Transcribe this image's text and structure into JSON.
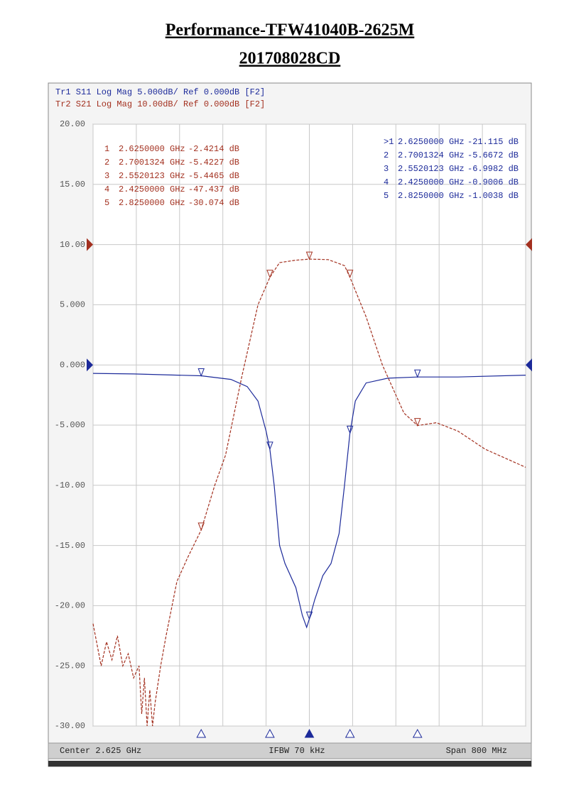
{
  "chart_data": {
    "type": "line",
    "title": "Performance-TFW41040B-2625M",
    "subtitle": "201708028CD",
    "footer": {
      "left": "Center 2.625 GHz",
      "center": "IFBW 70 kHz",
      "right": "Span 800 MHz"
    },
    "xlim": [
      2.225,
      3.025
    ],
    "xticks": [
      2.225,
      2.305,
      2.385,
      2.465,
      2.545,
      2.625,
      2.705,
      2.785,
      2.865,
      2.945,
      3.025
    ],
    "ylim": [
      -30,
      20
    ],
    "yticks": [
      {
        "value": 20,
        "label": "20.00"
      },
      {
        "value": 15,
        "label": "15.00"
      },
      {
        "value": 10,
        "label": "10.00"
      },
      {
        "value": 5,
        "label": "5.000"
      },
      {
        "value": 0,
        "label": "0.000"
      },
      {
        "value": -5,
        "label": "-5.000"
      },
      {
        "value": -10,
        "label": "-10.00"
      },
      {
        "value": -15,
        "label": "-15.00"
      },
      {
        "value": -20,
        "label": "-20.00"
      },
      {
        "value": -25,
        "label": "-25.00"
      },
      {
        "value": -30,
        "label": "-30.00"
      }
    ],
    "y2lim": [
      -80,
      20
    ],
    "grid": true,
    "series": [
      {
        "name": "Tr1 S11 Log Mag 5.000dB/ Ref 0.000dB [F2]",
        "color": "#1c2a9a",
        "ref": 0,
        "x": [
          2.225,
          2.3,
          2.425,
          2.48,
          2.51,
          2.53,
          2.545,
          2.552,
          2.56,
          2.57,
          2.58,
          2.6,
          2.612,
          2.62,
          2.625,
          2.635,
          2.65,
          2.665,
          2.68,
          2.69,
          2.7,
          2.71,
          2.73,
          2.77,
          2.825,
          2.9,
          3.025
        ],
        "values": [
          -0.7,
          -0.75,
          -0.9,
          -1.2,
          -1.8,
          -3,
          -5.5,
          -7,
          -10,
          -15,
          -16.5,
          -18.5,
          -20.8,
          -21.8,
          -21.1,
          -19.5,
          -17.5,
          -16.5,
          -14,
          -10,
          -5.67,
          -3,
          -1.5,
          -1.1,
          -1.0,
          -1.0,
          -0.85
        ],
        "markers": {
          "labels": [
            ">1",
            "2",
            "3",
            "4",
            "5"
          ],
          "x": [
            2.625,
            2.7001324,
            2.5520123,
            2.425,
            2.825
          ],
          "x_labels": [
            "2.6250000 GHz",
            "2.7001324 GHz",
            "2.5520123 GHz",
            "2.4250000 GHz",
            "2.8250000 GHz"
          ],
          "values": [
            -21.115,
            -5.6672,
            -6.9982,
            -0.9006,
            -1.0038
          ],
          "value_labels": [
            "-21.115 dB",
            "-5.6672 dB",
            "-6.9982 dB",
            "-0.9006 dB",
            "-1.0038 dB"
          ]
        }
      },
      {
        "name": "Tr2 S21 Log Mag 10.00dB/ Ref 0.000dB [F2]",
        "color": "#a3301f",
        "axis": "y2",
        "ref": 0,
        "x": [
          2.225,
          2.24,
          2.25,
          2.26,
          2.27,
          2.28,
          2.29,
          2.3,
          2.31,
          2.315,
          2.32,
          2.325,
          2.33,
          2.335,
          2.34,
          2.35,
          2.36,
          2.38,
          2.4,
          2.425,
          2.45,
          2.47,
          2.5,
          2.53,
          2.552,
          2.57,
          2.6,
          2.625,
          2.66,
          2.69,
          2.7,
          2.73,
          2.76,
          2.8,
          2.825,
          2.86,
          2.9,
          2.95,
          3.025
        ],
        "values": [
          -63,
          -70,
          -66,
          -69,
          -65,
          -70,
          -68,
          -72,
          -70,
          -78,
          -72,
          -80,
          -74,
          -80,
          -76,
          -70,
          -65,
          -56,
          -52,
          -47.437,
          -40,
          -35,
          -22,
          -10,
          -5.4465,
          -3,
          -2.6,
          -2.4214,
          -2.5,
          -3.5,
          -5.4227,
          -12,
          -20,
          -28,
          -30.074,
          -29.6,
          -31,
          -34,
          -37
        ],
        "markers": {
          "labels": [
            "1",
            "2",
            "3",
            "4",
            "5"
          ],
          "x": [
            2.625,
            2.7001324,
            2.5520123,
            2.425,
            2.825
          ],
          "x_labels": [
            "2.6250000 GHz",
            "2.7001324 GHz",
            "2.5520123 GHz",
            "2.4250000 GHz",
            "2.8250000 GHz"
          ],
          "values": [
            -2.4214,
            -5.4227,
            -5.4465,
            -47.437,
            -30.074
          ],
          "value_labels": [
            "-2.4214 dB",
            "-5.4227 dB",
            "-5.4465 dB",
            "-47.437 dB",
            "-30.074 dB"
          ]
        }
      }
    ]
  }
}
